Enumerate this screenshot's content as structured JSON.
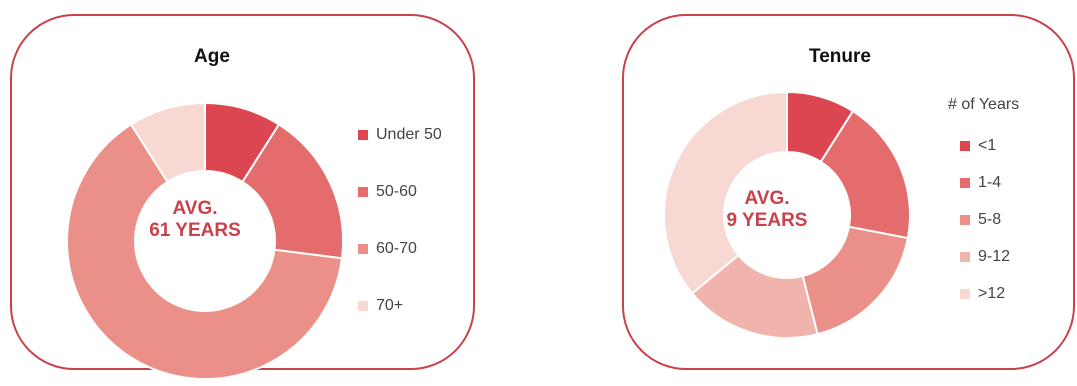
{
  "chart_data": [
    {
      "type": "pie",
      "title": "Age",
      "center_text": [
        "AVG.",
        "61 YEARS"
      ],
      "categories": [
        "Under 50",
        "50-60",
        "60-70",
        "70+"
      ],
      "values": [
        9,
        18,
        64,
        9
      ],
      "colors": [
        "#dc4650",
        "#e46c6c",
        "#eb9088",
        "#f7d8d2"
      ],
      "legend_title": "",
      "legend": "right"
    },
    {
      "type": "pie",
      "title": "Tenure",
      "center_text": [
        "AVG.",
        "9 YEARS"
      ],
      "categories": [
        "<1",
        "1-4",
        "5-8",
        "9-12",
        ">12"
      ],
      "values": [
        9,
        19,
        18,
        18,
        36
      ],
      "colors": [
        "#dc4650",
        "#e46c6c",
        "#eb9088",
        "#f1b4ac",
        "#f7d8d2"
      ],
      "legend_title": "# of Years",
      "legend": "right"
    }
  ]
}
